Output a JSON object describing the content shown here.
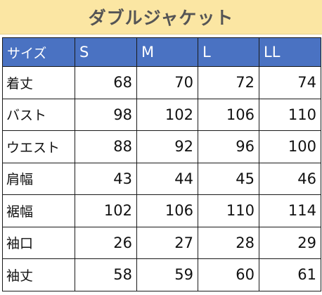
{
  "title": "ダブルジャケット",
  "colors": {
    "title_background": "#fbe6a3",
    "header_background": "#4a72c2",
    "header_text": "#ffffff",
    "title_text": "#555555"
  },
  "table": {
    "headers": [
      "サイズ",
      "S",
      "M",
      "L",
      "LL"
    ],
    "rows": [
      {
        "label": "着丈",
        "values": [
          "68",
          "70",
          "72",
          "74"
        ]
      },
      {
        "label": "バスト",
        "values": [
          "98",
          "102",
          "106",
          "110"
        ]
      },
      {
        "label": "ウエスト",
        "values": [
          "88",
          "92",
          "96",
          "100"
        ]
      },
      {
        "label": "肩幅",
        "values": [
          "43",
          "44",
          "45",
          "46"
        ]
      },
      {
        "label": "裾幅",
        "values": [
          "102",
          "106",
          "110",
          "114"
        ]
      },
      {
        "label": "袖口",
        "values": [
          "26",
          "27",
          "28",
          "29"
        ]
      },
      {
        "label": "袖丈",
        "values": [
          "58",
          "59",
          "60",
          "61"
        ]
      }
    ]
  }
}
